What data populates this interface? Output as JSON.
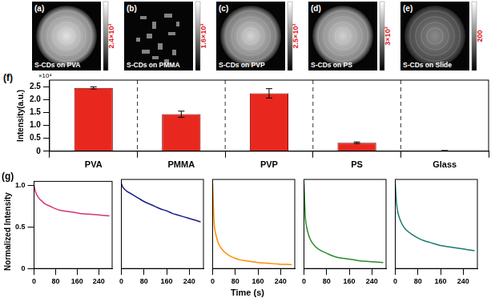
{
  "images": [
    {
      "label": "(a)",
      "caption": "S-CDs on PVA",
      "colorbar_max": {
        "value": 2400,
        "label": "2.4×10³"
      }
    },
    {
      "label": "(b)",
      "caption": "S-CDs on PMMA",
      "colorbar_max": {
        "value": 1600,
        "label": "1.6×10³"
      }
    },
    {
      "label": "(c)",
      "caption": "S-CDs on PVP",
      "colorbar_max": {
        "value": 2500,
        "label": "2.5×10³"
      }
    },
    {
      "label": "(d)",
      "caption": "S-CDs on PS",
      "colorbar_max": {
        "value": 3000,
        "label": "3×10³"
      }
    },
    {
      "label": "(e)",
      "caption": "S-CDs on Slide",
      "colorbar_max": 200
    }
  ],
  "chart_data": [
    {
      "type": "bar",
      "panel_label": "(f)",
      "ylabel": "Intensity(a.u.)",
      "y_multiplier": "×10⁴",
      "categories": [
        "PVA",
        "PMMA",
        "PVP",
        "PS",
        "Glass"
      ],
      "values": [
        2.45,
        1.43,
        2.24,
        0.33,
        0.02
      ],
      "errors": [
        0.04,
        0.12,
        0.18,
        0.03,
        0.01
      ],
      "color": "#e8281e",
      "ylim": [
        0,
        2.75
      ],
      "yticks": [
        0,
        0.5,
        {
          "value": 1,
          "label": "1.0"
        },
        1.5,
        {
          "value": 2,
          "label": "2.0"
        },
        2.5
      ],
      "grid": false
    },
    {
      "type": "line",
      "panel_label": "(g)",
      "xlabel": "Time (s)",
      "ylabel": "Normalized Intensity",
      "x": [
        0,
        5,
        10,
        20,
        30,
        40,
        60,
        80,
        100,
        120,
        140,
        160,
        180,
        200,
        220,
        240,
        260,
        280
      ],
      "xlim": [
        0,
        290
      ],
      "xticks": [
        0,
        80,
        160,
        240
      ],
      "ylim": [
        0,
        1.05
      ],
      "yticks": [
        0,
        0.5,
        {
          "value": 1,
          "label": "1.0"
        }
      ],
      "grid": false,
      "series": [
        {
          "color": "#d6337a",
          "values": [
            1.0,
            0.93,
            0.89,
            0.84,
            0.81,
            0.78,
            0.75,
            0.72,
            0.7,
            0.69,
            0.68,
            0.67,
            0.66,
            0.655,
            0.65,
            0.645,
            0.64,
            0.635
          ]
        },
        {
          "color": "#1c1c8c",
          "values": [
            1.0,
            0.96,
            0.94,
            0.91,
            0.89,
            0.87,
            0.83,
            0.79,
            0.76,
            0.73,
            0.7,
            0.68,
            0.65,
            0.63,
            0.61,
            0.59,
            0.57,
            0.55
          ]
        },
        {
          "color": "#ff8c00",
          "values": [
            1.0,
            0.55,
            0.42,
            0.3,
            0.24,
            0.2,
            0.15,
            0.12,
            0.1,
            0.09,
            0.08,
            0.07,
            0.065,
            0.06,
            0.055,
            0.05,
            0.05,
            0.045
          ]
        },
        {
          "color": "#2a8a2a",
          "values": [
            1.0,
            0.6,
            0.48,
            0.36,
            0.3,
            0.26,
            0.21,
            0.18,
            0.15,
            0.13,
            0.12,
            0.11,
            0.1,
            0.09,
            0.085,
            0.08,
            0.075,
            0.07
          ]
        },
        {
          "color": "#1b7a6e",
          "values": [
            1.0,
            0.75,
            0.65,
            0.55,
            0.49,
            0.45,
            0.4,
            0.36,
            0.33,
            0.31,
            0.29,
            0.27,
            0.26,
            0.25,
            0.24,
            0.23,
            0.22,
            0.21
          ]
        }
      ]
    }
  ]
}
